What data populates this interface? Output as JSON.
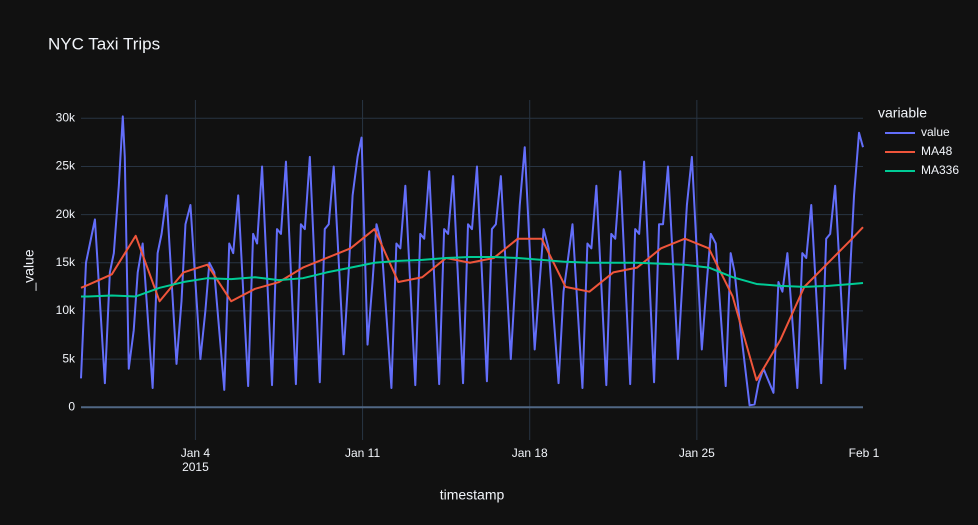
{
  "chart_data": {
    "type": "line",
    "title": "NYC Taxi Trips",
    "x_label": "timestamp",
    "y_label": "_value",
    "legend_title": "variable",
    "legend_position": "right",
    "grid": true,
    "xlim": [
      "2014-12-30T05:00",
      "2015-01-31T23:00"
    ],
    "ylim": [
      -3400,
      31900
    ],
    "xticks": [
      {
        "value": "2015-01-04T00:00",
        "label": "Jan 4",
        "sublabel": "2015"
      },
      {
        "value": "2015-01-11T00:00",
        "label": "Jan 11"
      },
      {
        "value": "2015-01-18T00:00",
        "label": "Jan 18"
      },
      {
        "value": "2015-01-25T00:00",
        "label": "Jan 25"
      },
      {
        "value": "2015-02-01T00:00",
        "label": "Feb 1"
      }
    ],
    "yticks": [
      0,
      {
        "value": 5000,
        "label": "5k"
      },
      {
        "value": 10000,
        "label": "10k"
      },
      {
        "value": 15000,
        "label": "15k"
      },
      {
        "value": 20000,
        "label": "20k"
      },
      {
        "value": 25000,
        "label": "25k"
      },
      {
        "value": 30000,
        "label": "30k"
      }
    ],
    "series": [
      {
        "name": "value",
        "color": "#636efa",
        "x": [
          "2014-12-30T05:00",
          "2014-12-30T10:00",
          "2014-12-30T14:00",
          "2014-12-30T19:00",
          "2014-12-31T05:00",
          "2014-12-31T10:00",
          "2014-12-31T14:00",
          "2014-12-31T19:00",
          "2014-12-31T23:00",
          "2015-01-01T01:00",
          "2015-01-01T05:00",
          "2015-01-01T10:00",
          "2015-01-01T14:00",
          "2015-01-01T19:00",
          "2015-01-02T05:00",
          "2015-01-02T10:00",
          "2015-01-02T14:00",
          "2015-01-02T19:00",
          "2015-01-03T05:00",
          "2015-01-03T10:00",
          "2015-01-03T14:00",
          "2015-01-03T19:00",
          "2015-01-04T05:00",
          "2015-01-04T10:00",
          "2015-01-04T14:00",
          "2015-01-04T19:00",
          "2015-01-05T05:00",
          "2015-01-05T10:00",
          "2015-01-05T14:00",
          "2015-01-05T19:00",
          "2015-01-06T05:00",
          "2015-01-06T10:00",
          "2015-01-06T14:00",
          "2015-01-06T19:00",
          "2015-01-07T05:00",
          "2015-01-07T10:00",
          "2015-01-07T14:00",
          "2015-01-07T19:00",
          "2015-01-08T05:00",
          "2015-01-08T10:00",
          "2015-01-08T14:00",
          "2015-01-08T19:00",
          "2015-01-09T05:00",
          "2015-01-09T10:00",
          "2015-01-09T14:00",
          "2015-01-09T19:00",
          "2015-01-10T05:00",
          "2015-01-10T10:00",
          "2015-01-10T14:00",
          "2015-01-10T19:00",
          "2015-01-10T23:00",
          "2015-01-11T05:00",
          "2015-01-11T10:00",
          "2015-01-11T14:00",
          "2015-01-11T19:00",
          "2015-01-12T05:00",
          "2015-01-12T10:00",
          "2015-01-12T14:00",
          "2015-01-12T19:00",
          "2015-01-13T05:00",
          "2015-01-13T10:00",
          "2015-01-13T14:00",
          "2015-01-13T19:00",
          "2015-01-14T05:00",
          "2015-01-14T10:00",
          "2015-01-14T14:00",
          "2015-01-14T19:00",
          "2015-01-15T05:00",
          "2015-01-15T10:00",
          "2015-01-15T14:00",
          "2015-01-15T19:00",
          "2015-01-16T05:00",
          "2015-01-16T10:00",
          "2015-01-16T14:00",
          "2015-01-16T19:00",
          "2015-01-17T05:00",
          "2015-01-17T10:00",
          "2015-01-17T14:00",
          "2015-01-17T19:00",
          "2015-01-18T05:00",
          "2015-01-18T10:00",
          "2015-01-18T14:00",
          "2015-01-18T19:00",
          "2015-01-19T05:00",
          "2015-01-19T10:00",
          "2015-01-19T14:00",
          "2015-01-19T19:00",
          "2015-01-20T05:00",
          "2015-01-20T10:00",
          "2015-01-20T14:00",
          "2015-01-20T19:00",
          "2015-01-21T05:00",
          "2015-01-21T10:00",
          "2015-01-21T14:00",
          "2015-01-21T19:00",
          "2015-01-22T05:00",
          "2015-01-22T10:00",
          "2015-01-22T14:00",
          "2015-01-22T19:00",
          "2015-01-23T05:00",
          "2015-01-23T10:00",
          "2015-01-23T14:00",
          "2015-01-23T19:00",
          "2015-01-24T05:00",
          "2015-01-24T10:00",
          "2015-01-24T14:00",
          "2015-01-24T19:00",
          "2015-01-25T05:00",
          "2015-01-25T10:00",
          "2015-01-25T14:00",
          "2015-01-25T19:00",
          "2015-01-26T05:00",
          "2015-01-26T10:00",
          "2015-01-26T14:00",
          "2015-01-26T19:00",
          "2015-01-27T05:00",
          "2015-01-27T10:00",
          "2015-01-27T14:00",
          "2015-01-27T19:00",
          "2015-01-28T05:00",
          "2015-01-28T10:00",
          "2015-01-28T14:00",
          "2015-01-28T19:00",
          "2015-01-29T05:00",
          "2015-01-29T10:00",
          "2015-01-29T14:00",
          "2015-01-29T19:00",
          "2015-01-30T05:00",
          "2015-01-30T10:00",
          "2015-01-30T14:00",
          "2015-01-30T19:00",
          "2015-01-31T05:00",
          "2015-01-31T10:00",
          "2015-01-31T14:00",
          "2015-01-31T19:00",
          "2015-01-31T23:00"
        ],
        "values": [
          3000,
          15000,
          17000,
          19500,
          2500,
          14000,
          16000,
          23000,
          30200,
          26000,
          4000,
          8000,
          14000,
          17000,
          2000,
          16000,
          18000,
          22000,
          4500,
          11000,
          19000,
          21000,
          5000,
          10000,
          15000,
          14000,
          1800,
          17000,
          16000,
          22000,
          2200,
          18000,
          17000,
          25000,
          2300,
          18500,
          18000,
          25500,
          2400,
          19000,
          18500,
          26000,
          2600,
          18500,
          19000,
          25000,
          5500,
          14000,
          22000,
          26000,
          28000,
          6500,
          13000,
          19000,
          17000,
          2000,
          17000,
          16500,
          23000,
          2300,
          18000,
          17500,
          24500,
          2400,
          18500,
          18000,
          24000,
          2500,
          19000,
          18500,
          25000,
          2700,
          18500,
          19000,
          24000,
          5000,
          14000,
          21000,
          27000,
          6000,
          13000,
          18500,
          16500,
          2500,
          12000,
          15000,
          19000,
          2000,
          17000,
          16500,
          23000,
          2300,
          18000,
          17500,
          24500,
          2400,
          18500,
          18000,
          25500,
          2600,
          19000,
          19000,
          25000,
          5000,
          14000,
          21000,
          26000,
          6000,
          13000,
          18000,
          17000,
          2200,
          16000,
          14000,
          9000,
          200,
          300,
          2500,
          4000,
          1500,
          13000,
          12000,
          16000,
          2000,
          16000,
          15500,
          21000,
          2500,
          17500,
          18000,
          23000,
          4000,
          14000,
          22000,
          28500,
          27000
        ]
      },
      {
        "name": "MA48",
        "color": "#EF553B",
        "x": [
          "2014-12-30T05:00",
          "2014-12-30T12:00",
          "2014-12-31T12:00",
          "2015-01-01T12:00",
          "2015-01-02T12:00",
          "2015-01-03T12:00",
          "2015-01-04T12:00",
          "2015-01-05T12:00",
          "2015-01-06T12:00",
          "2015-01-07T12:00",
          "2015-01-08T12:00",
          "2015-01-09T12:00",
          "2015-01-10T12:00",
          "2015-01-11T12:00",
          "2015-01-12T12:00",
          "2015-01-13T12:00",
          "2015-01-14T12:00",
          "2015-01-15T12:00",
          "2015-01-16T12:00",
          "2015-01-17T12:00",
          "2015-01-18T12:00",
          "2015-01-19T12:00",
          "2015-01-20T12:00",
          "2015-01-21T12:00",
          "2015-01-22T12:00",
          "2015-01-23T12:00",
          "2015-01-24T12:00",
          "2015-01-25T12:00",
          "2015-01-26T12:00",
          "2015-01-27T12:00",
          "2015-01-28T12:00",
          "2015-01-29T12:00",
          "2015-01-30T12:00",
          "2015-01-31T12:00",
          "2015-01-31T23:00"
        ],
        "values": [
          12400,
          12700,
          13800,
          17800,
          11000,
          14000,
          14800,
          11000,
          12300,
          13000,
          14500,
          15500,
          16500,
          18500,
          13000,
          13500,
          15500,
          15000,
          15500,
          17500,
          17500,
          12500,
          12000,
          14000,
          14500,
          16500,
          17500,
          16500,
          11500,
          2800,
          7000,
          12500,
          15000,
          17500,
          18700
        ]
      },
      {
        "name": "MA336",
        "color": "#00cc96",
        "x": [
          "2014-12-30T05:00",
          "2014-12-30T12:00",
          "2014-12-31T12:00",
          "2015-01-01T12:00",
          "2015-01-02T12:00",
          "2015-01-03T12:00",
          "2015-01-04T12:00",
          "2015-01-05T12:00",
          "2015-01-06T12:00",
          "2015-01-07T12:00",
          "2015-01-08T12:00",
          "2015-01-09T12:00",
          "2015-01-10T12:00",
          "2015-01-11T12:00",
          "2015-01-12T12:00",
          "2015-01-13T12:00",
          "2015-01-14T12:00",
          "2015-01-15T12:00",
          "2015-01-16T12:00",
          "2015-01-17T12:00",
          "2015-01-18T12:00",
          "2015-01-19T12:00",
          "2015-01-20T12:00",
          "2015-01-21T12:00",
          "2015-01-22T12:00",
          "2015-01-23T12:00",
          "2015-01-24T12:00",
          "2015-01-25T12:00",
          "2015-01-26T12:00",
          "2015-01-27T12:00",
          "2015-01-28T12:00",
          "2015-01-29T12:00",
          "2015-01-30T12:00",
          "2015-01-31T12:00",
          "2015-01-31T23:00"
        ],
        "values": [
          11500,
          11500,
          11600,
          11500,
          12400,
          13000,
          13400,
          13300,
          13500,
          13200,
          13400,
          14000,
          14500,
          15000,
          15200,
          15300,
          15500,
          15600,
          15600,
          15500,
          15300,
          15100,
          15000,
          15000,
          15000,
          14900,
          14800,
          14500,
          13500,
          12800,
          12600,
          12500,
          12600,
          12800,
          12900
        ]
      }
    ]
  }
}
